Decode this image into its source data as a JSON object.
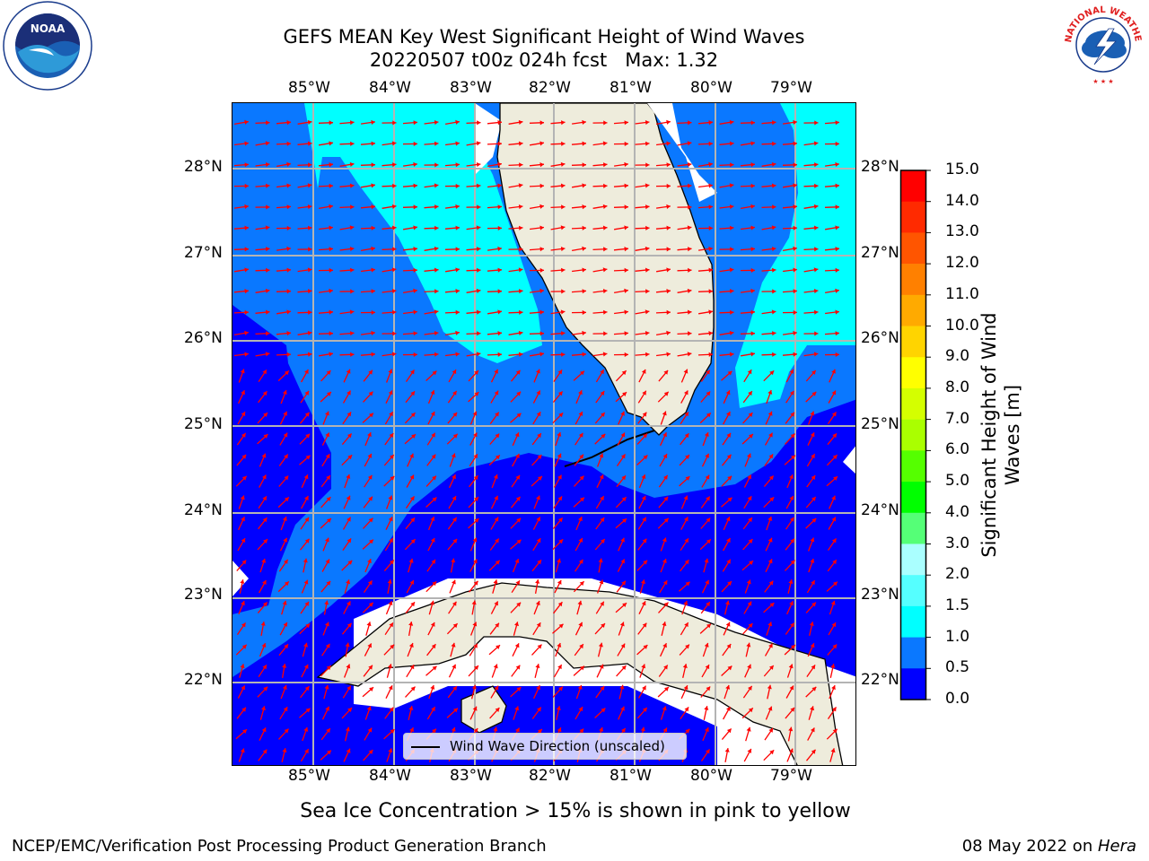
{
  "title": {
    "line1": "GEFS MEAN Key West Significant Height of Wind Waves",
    "line2": "20220507 t00z 024h fcst   Max: 1.32"
  },
  "logos": {
    "left": {
      "icon": "noaa-logo-icon",
      "text": "NOAA"
    },
    "right": {
      "icon": "nws-logo-icon",
      "text": "NATIONAL WEATHER SERVICE"
    }
  },
  "map": {
    "lon_labels": [
      "85°W",
      "84°W",
      "83°W",
      "82°W",
      "81°W",
      "80°W",
      "79°W"
    ],
    "lat_labels": [
      "28°N",
      "27°N",
      "26°N",
      "25°N",
      "24°N",
      "23°N",
      "22°N"
    ],
    "colors": {
      "land": "#eeecdc",
      "blue": "#0000ff",
      "mid_blue": "#0a78ff",
      "cyan": "#00ffff",
      "arrow": "#ff0000",
      "grid": "#b4b4b4"
    }
  },
  "legend": {
    "label": "Wind Wave Direction (unscaled)"
  },
  "colorbar": {
    "levels": [
      "15.0",
      "14.0",
      "13.0",
      "12.0",
      "11.0",
      "10.0",
      "9.0",
      "8.0",
      "7.0",
      "6.0",
      "5.0",
      "4.0",
      "3.0",
      "2.0",
      "1.5",
      "1.0",
      "0.5",
      "0.0"
    ],
    "colors": [
      "#ff0000",
      "#ff2a00",
      "#ff5500",
      "#ff8000",
      "#ffaa00",
      "#ffd400",
      "#ffff00",
      "#d4ff00",
      "#aaff00",
      "#55ff00",
      "#00ff00",
      "#55ff77",
      "#aaffff",
      "#55ffff",
      "#00ffff",
      "#0a78ff",
      "#0000ff"
    ],
    "label": "Significant Height of Wind Waves [m]"
  },
  "footnote": "Sea Ice Concentration > 15% is shown in pink to yellow",
  "footer": {
    "left": "NCEP/EMC/Verification Post Processing Product Generation Branch",
    "right_date": "08 May 2022 on ",
    "right_machine": "Hera"
  }
}
